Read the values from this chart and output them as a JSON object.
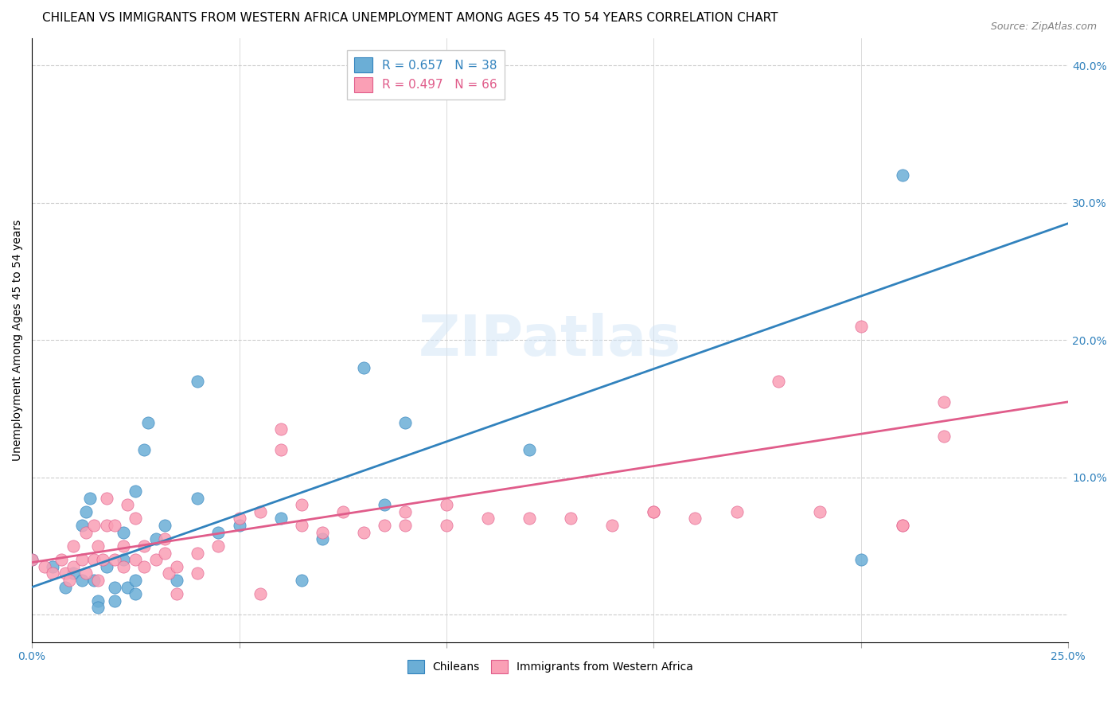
{
  "title": "CHILEAN VS IMMIGRANTS FROM WESTERN AFRICA UNEMPLOYMENT AMONG AGES 45 TO 54 YEARS CORRELATION CHART",
  "source": "Source: ZipAtlas.com",
  "xlabel": "",
  "ylabel": "Unemployment Among Ages 45 to 54 years",
  "xlim": [
    0.0,
    0.25
  ],
  "ylim": [
    -0.02,
    0.42
  ],
  "right_yticks": [
    0.0,
    0.1,
    0.2,
    0.3,
    0.4
  ],
  "right_yticklabels": [
    "",
    "10.0%",
    "20.0%",
    "30.0%",
    "40.0%"
  ],
  "xticks": [
    0.0,
    0.05,
    0.1,
    0.15,
    0.2,
    0.25
  ],
  "xticklabels": [
    "0.0%",
    "",
    "",
    "",
    "",
    "25.0%"
  ],
  "legend_entry1": "R = 0.657   N = 38",
  "legend_entry2": "R = 0.497   N = 66",
  "color_blue": "#6baed6",
  "color_pink": "#fa9fb5",
  "line_color_blue": "#3182bd",
  "line_color_pink": "#e05c8a",
  "watermark": "ZIPatlas",
  "blue_scatter_x": [
    0.0,
    0.005,
    0.008,
    0.01,
    0.012,
    0.012,
    0.013,
    0.014,
    0.015,
    0.016,
    0.016,
    0.018,
    0.02,
    0.02,
    0.022,
    0.022,
    0.023,
    0.025,
    0.025,
    0.025,
    0.027,
    0.028,
    0.03,
    0.032,
    0.035,
    0.04,
    0.04,
    0.045,
    0.05,
    0.06,
    0.065,
    0.07,
    0.08,
    0.085,
    0.09,
    0.12,
    0.2,
    0.21
  ],
  "blue_scatter_y": [
    0.04,
    0.035,
    0.02,
    0.03,
    0.025,
    0.065,
    0.075,
    0.085,
    0.025,
    0.01,
    0.005,
    0.035,
    0.01,
    0.02,
    0.04,
    0.06,
    0.02,
    0.015,
    0.025,
    0.09,
    0.12,
    0.14,
    0.055,
    0.065,
    0.025,
    0.085,
    0.17,
    0.06,
    0.065,
    0.07,
    0.025,
    0.055,
    0.18,
    0.08,
    0.14,
    0.12,
    0.04,
    0.32
  ],
  "pink_scatter_x": [
    0.0,
    0.003,
    0.005,
    0.007,
    0.008,
    0.009,
    0.01,
    0.01,
    0.012,
    0.013,
    0.013,
    0.015,
    0.015,
    0.016,
    0.016,
    0.017,
    0.018,
    0.018,
    0.02,
    0.02,
    0.022,
    0.022,
    0.023,
    0.025,
    0.025,
    0.027,
    0.027,
    0.03,
    0.032,
    0.032,
    0.033,
    0.035,
    0.035,
    0.04,
    0.04,
    0.045,
    0.05,
    0.055,
    0.055,
    0.06,
    0.06,
    0.065,
    0.065,
    0.07,
    0.075,
    0.08,
    0.085,
    0.09,
    0.09,
    0.1,
    0.1,
    0.11,
    0.12,
    0.13,
    0.14,
    0.15,
    0.15,
    0.16,
    0.17,
    0.18,
    0.19,
    0.2,
    0.21,
    0.21,
    0.22,
    0.22
  ],
  "pink_scatter_y": [
    0.04,
    0.035,
    0.03,
    0.04,
    0.03,
    0.025,
    0.035,
    0.05,
    0.04,
    0.03,
    0.06,
    0.04,
    0.065,
    0.05,
    0.025,
    0.04,
    0.065,
    0.085,
    0.04,
    0.065,
    0.035,
    0.05,
    0.08,
    0.04,
    0.07,
    0.035,
    0.05,
    0.04,
    0.045,
    0.055,
    0.03,
    0.035,
    0.015,
    0.03,
    0.045,
    0.05,
    0.07,
    0.015,
    0.075,
    0.12,
    0.135,
    0.065,
    0.08,
    0.06,
    0.075,
    0.06,
    0.065,
    0.075,
    0.065,
    0.065,
    0.08,
    0.07,
    0.07,
    0.07,
    0.065,
    0.075,
    0.075,
    0.07,
    0.075,
    0.17,
    0.075,
    0.21,
    0.065,
    0.065,
    0.13,
    0.155
  ],
  "blue_line_x": [
    0.0,
    0.25
  ],
  "blue_line_y": [
    0.02,
    0.285
  ],
  "pink_line_x": [
    0.0,
    0.25
  ],
  "pink_line_y": [
    0.038,
    0.155
  ],
  "background_color": "#ffffff",
  "grid_color": "#cccccc",
  "tick_color_blue": "#3182bd",
  "title_fontsize": 11,
  "axis_label_fontsize": 10,
  "tick_fontsize": 10
}
